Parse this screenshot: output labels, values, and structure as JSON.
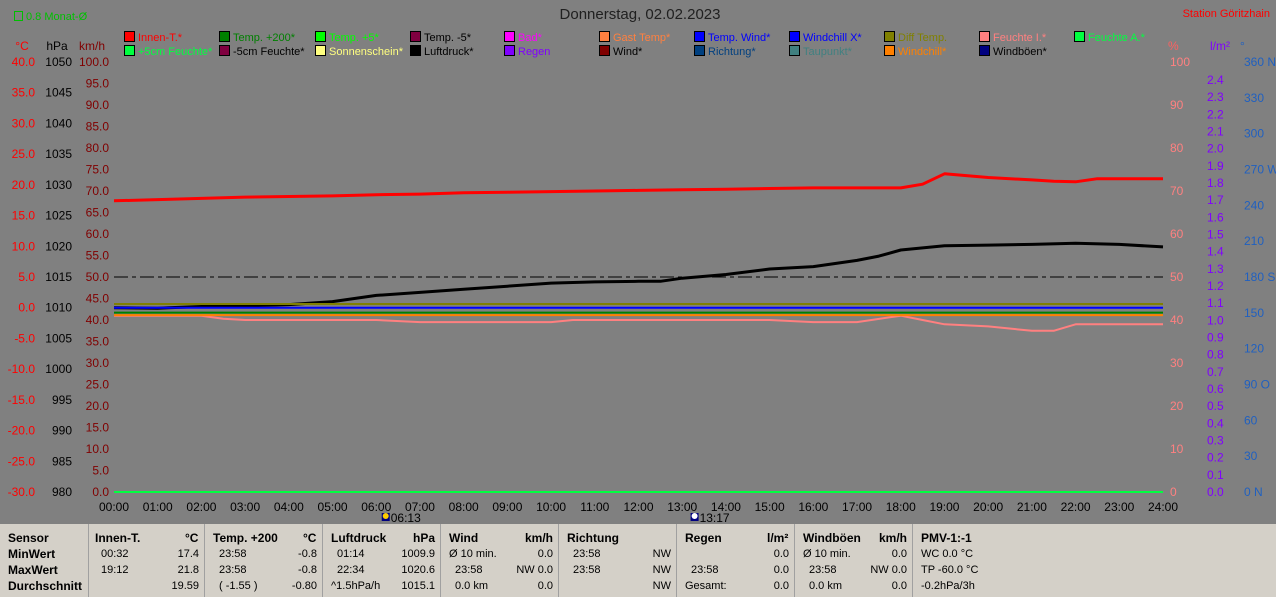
{
  "month_indicator": "0.8 Monat-Ø",
  "title": "Donnerstag, 02.02.2023",
  "station": "Station Göritzhain",
  "legend": [
    {
      "label": "Innen-T.*",
      "color": "#ff0000"
    },
    {
      "label": "Temp. +200*",
      "color": "#008000"
    },
    {
      "label": "Temp. +5*",
      "color": "#00ff00"
    },
    {
      "label": "Temp. -5*",
      "color": "#800040"
    },
    {
      "label": "Bad*",
      "color": "#ff00ff"
    },
    {
      "label": "Gast Temp*",
      "color": "#ff8040"
    },
    {
      "label": "Temp. Wind*",
      "color": "#0000ff"
    },
    {
      "label": "Windchill X*",
      "color": "#0000ff"
    },
    {
      "label": "Diff Temp.",
      "color": "#808000"
    },
    {
      "label": "Feuchte I.*",
      "color": "#ff8080"
    },
    {
      "label": "Feuchte A.*",
      "color": "#00ff40"
    },
    {
      "label": "+5cm Feuchte*",
      "color": "#00ff40"
    },
    {
      "label": "-5cm Feuchte*",
      "color": "#800040"
    },
    {
      "label": "Sonnenschein*",
      "color": "#ffff80"
    },
    {
      "label": "Luftdruck*",
      "color": "#000000"
    },
    {
      "label": "Regen",
      "color": "#8000ff"
    },
    {
      "label": "Wind*",
      "color": "#800000"
    },
    {
      "label": "Richtung*",
      "color": "#004080"
    },
    {
      "label": "Taupunkt*",
      "color": "#408080"
    },
    {
      "label": "Windchill*",
      "color": "#ff8000"
    },
    {
      "label": "Windböen*",
      "color": "#000080"
    }
  ],
  "axes": {
    "left_units": [
      "°C",
      "hPa",
      "km/h"
    ],
    "right_units": [
      "%",
      "l/m²",
      "°"
    ],
    "temp_ticks": [
      "40.0",
      "35.0",
      "30.0",
      "25.0",
      "20.0",
      "15.0",
      "10.0",
      "5.0",
      "0.0",
      "-5.0",
      "-10.0",
      "-15.0",
      "-20.0",
      "-25.0",
      "-30.0"
    ],
    "hpa_ticks": [
      "1050",
      "1045",
      "1040",
      "1035",
      "1030",
      "1025",
      "1020",
      "1015",
      "1010",
      "1005",
      "1000",
      "995",
      "990",
      "985",
      "980"
    ],
    "kmh_ticks": [
      "100.0",
      "95.0",
      "90.0",
      "85.0",
      "80.0",
      "75.0",
      "70.0",
      "65.0",
      "60.0",
      "55.0",
      "50.0",
      "45.0",
      "40.0",
      "35.0",
      "30.0",
      "25.0",
      "20.0",
      "15.0",
      "10.0",
      "5.0",
      "0.0"
    ],
    "hum_ticks": [
      "100",
      "90",
      "80",
      "70",
      "60",
      "50",
      "40",
      "30",
      "20",
      "10",
      "0"
    ],
    "rain_ticks": [
      "2.4",
      "2.3",
      "2.2",
      "2.1",
      "2.0",
      "1.9",
      "1.8",
      "1.7",
      "1.6",
      "1.5",
      "1.4",
      "1.3",
      "1.2",
      "1.1",
      "1.0",
      "0.9",
      "0.8",
      "0.7",
      "0.6",
      "0.5",
      "0.4",
      "0.3",
      "0.2",
      "0.1",
      "0.0"
    ],
    "dir_ticks": [
      "360 N",
      "330",
      "300",
      "270 W",
      "240",
      "210",
      "180 S",
      "150",
      "120",
      "90  O",
      "60",
      "30",
      "0   N"
    ],
    "x_ticks": [
      "00:00",
      "01:00",
      "02:00",
      "03:00",
      "04:00",
      "05:00",
      "06:00",
      "07:00",
      "08:00",
      "09:00",
      "10:00",
      "11:00",
      "12:00",
      "13:00",
      "14:00",
      "15:00",
      "16:00",
      "17:00",
      "18:00",
      "19:00",
      "20:00",
      "21:00",
      "22:00",
      "23:00",
      "24:00"
    ],
    "sunrise": "06:13",
    "sunset": "13:17"
  },
  "chart_data": {
    "type": "line",
    "x_unit": "hours",
    "series": [
      {
        "name": "Innen-T.*",
        "color": "#ff0000",
        "axis": "°C",
        "x": [
          0,
          1,
          2,
          3,
          4,
          5,
          6,
          7,
          8,
          9,
          10,
          11,
          12,
          13,
          14,
          15,
          16,
          17,
          17.5,
          18,
          18.5,
          19,
          19.5,
          20,
          21,
          21.5,
          22,
          22.5,
          23,
          24
        ],
        "y": [
          17.4,
          17.6,
          17.8,
          18.0,
          18.1,
          18.2,
          18.4,
          18.5,
          18.7,
          18.8,
          18.9,
          19.0,
          19.1,
          19.2,
          19.3,
          19.4,
          19.5,
          19.5,
          19.5,
          19.5,
          20.1,
          21.8,
          21.5,
          21.2,
          20.8,
          20.6,
          20.5,
          21.0,
          21.0,
          21.0
        ]
      },
      {
        "name": "Luftdruck*",
        "color": "#000000",
        "axis": "hPa",
        "x": [
          0,
          1,
          1.25,
          2,
          3,
          4,
          5,
          5.5,
          6,
          7,
          8,
          9,
          10,
          11,
          12,
          12.5,
          13,
          14,
          15,
          16,
          17,
          17.5,
          18,
          19,
          20,
          21,
          22,
          23,
          24
        ],
        "y": [
          1010.0,
          1009.9,
          1010.0,
          1010.2,
          1010.3,
          1010.5,
          1011.0,
          1011.5,
          1012.0,
          1012.5,
          1013.0,
          1013.5,
          1014.0,
          1014.2,
          1014.3,
          1014.3,
          1014.8,
          1015.4,
          1016.3,
          1016.7,
          1017.7,
          1018.4,
          1019.4,
          1020.1,
          1020.2,
          1020.3,
          1020.5,
          1020.3,
          1019.9
        ]
      },
      {
        "name": "Feuchte I.*",
        "color": "#ff8080",
        "axis": "%",
        "x": [
          0,
          2,
          2.5,
          3,
          4,
          5,
          6,
          7,
          8,
          9,
          10,
          10.5,
          11,
          12,
          13,
          14,
          15,
          16,
          17,
          18,
          18.5,
          19,
          20,
          21,
          21.5,
          22,
          23,
          24
        ],
        "y": [
          41,
          41,
          40.3,
          40,
          40,
          40,
          40,
          39.5,
          39.5,
          39.5,
          39.5,
          40,
          40,
          40,
          40,
          40,
          40,
          39.5,
          39.5,
          41,
          40,
          39,
          38.5,
          37.5,
          37.5,
          39,
          39,
          39
        ]
      },
      {
        "name": "Temp. +200*",
        "color": "#008000",
        "axis": "°C",
        "x": [
          0,
          24
        ],
        "y": [
          -0.8,
          -0.8
        ]
      },
      {
        "name": "Temp. Wind*",
        "color": "#0000ff",
        "axis": "°C",
        "x": [
          0,
          24
        ],
        "y": [
          0.0,
          0.0
        ]
      },
      {
        "name": "Diff Temp.",
        "color": "#808000",
        "axis": "°C",
        "x": [
          0,
          24
        ],
        "y": [
          0.6,
          0.6
        ]
      },
      {
        "name": "Windchill*",
        "color": "#ff8000",
        "axis": "°C",
        "x": [
          0,
          24
        ],
        "y": [
          -1.2,
          -1.2
        ]
      },
      {
        "name": "Windböen*",
        "color": "#000080",
        "axis": "km/h",
        "x": [
          0,
          24
        ],
        "y": [
          0.0,
          0.0
        ]
      },
      {
        "name": "Feuchte A.*",
        "color": "#00ff40",
        "axis": "%",
        "x": [
          0,
          24
        ],
        "y": [
          0,
          0
        ]
      }
    ],
    "reference_line": {
      "value": 50,
      "axis": "%"
    }
  },
  "stats": {
    "labels": [
      "Sensor",
      "MinWert",
      "MaxWert",
      "Durchschnitt"
    ],
    "innen": {
      "title": "Innen-T.",
      "unit": "°C",
      "min_time": "00:32",
      "min": "17.4",
      "max_time": "19:12",
      "max": "21.8",
      "avg": "19.59"
    },
    "temp200": {
      "title": "Temp. +200",
      "unit": "°C",
      "min_time": "23:58",
      "min": "-0.8",
      "max_time": "23:58",
      "max": "-0.8",
      "avg_extra": "( -1.55 )",
      "avg": "-0.80"
    },
    "luftdruck": {
      "title": "Luftdruck",
      "unit": "hPa",
      "min_time": "01:14",
      "min": "1009.9",
      "max_time": "22:34",
      "max": "1020.6",
      "avg_extra": "^1.5hPa/h",
      "avg": "1015.1"
    },
    "wind": {
      "title": "Wind",
      "unit": "km/h",
      "r1a": "Ø 10 min.",
      "r1b": "0.0",
      "r2a": "23:58",
      "r2b": "NW 0.0",
      "r3a": "0.0 km",
      "r3b": "0.0"
    },
    "richtung": {
      "title": "Richtung",
      "r1a": "23:58",
      "r1b": "NW",
      "r2a": "23:58",
      "r2b": "NW",
      "r3b": "NW"
    },
    "regen": {
      "title": "Regen",
      "unit": "l/m²",
      "r1b": "0.0",
      "r2a": "23:58",
      "r2b": "0.0",
      "r3a": "Gesamt:",
      "r3b": "0.0"
    },
    "windboeen": {
      "title": "Windböen",
      "unit": "km/h",
      "r1a": "Ø 10 min.",
      "r1b": "0.0",
      "r2a": "23:58",
      "r2b": "NW 0.0",
      "r3a": "0.0 km",
      "r3b": "0.0"
    },
    "pmv": {
      "title": "PMV-1:-1",
      "r1": "WC 0.0 °C",
      "r2": "TP -60.0 °C",
      "r3": "-0.2hPa/3h"
    }
  }
}
